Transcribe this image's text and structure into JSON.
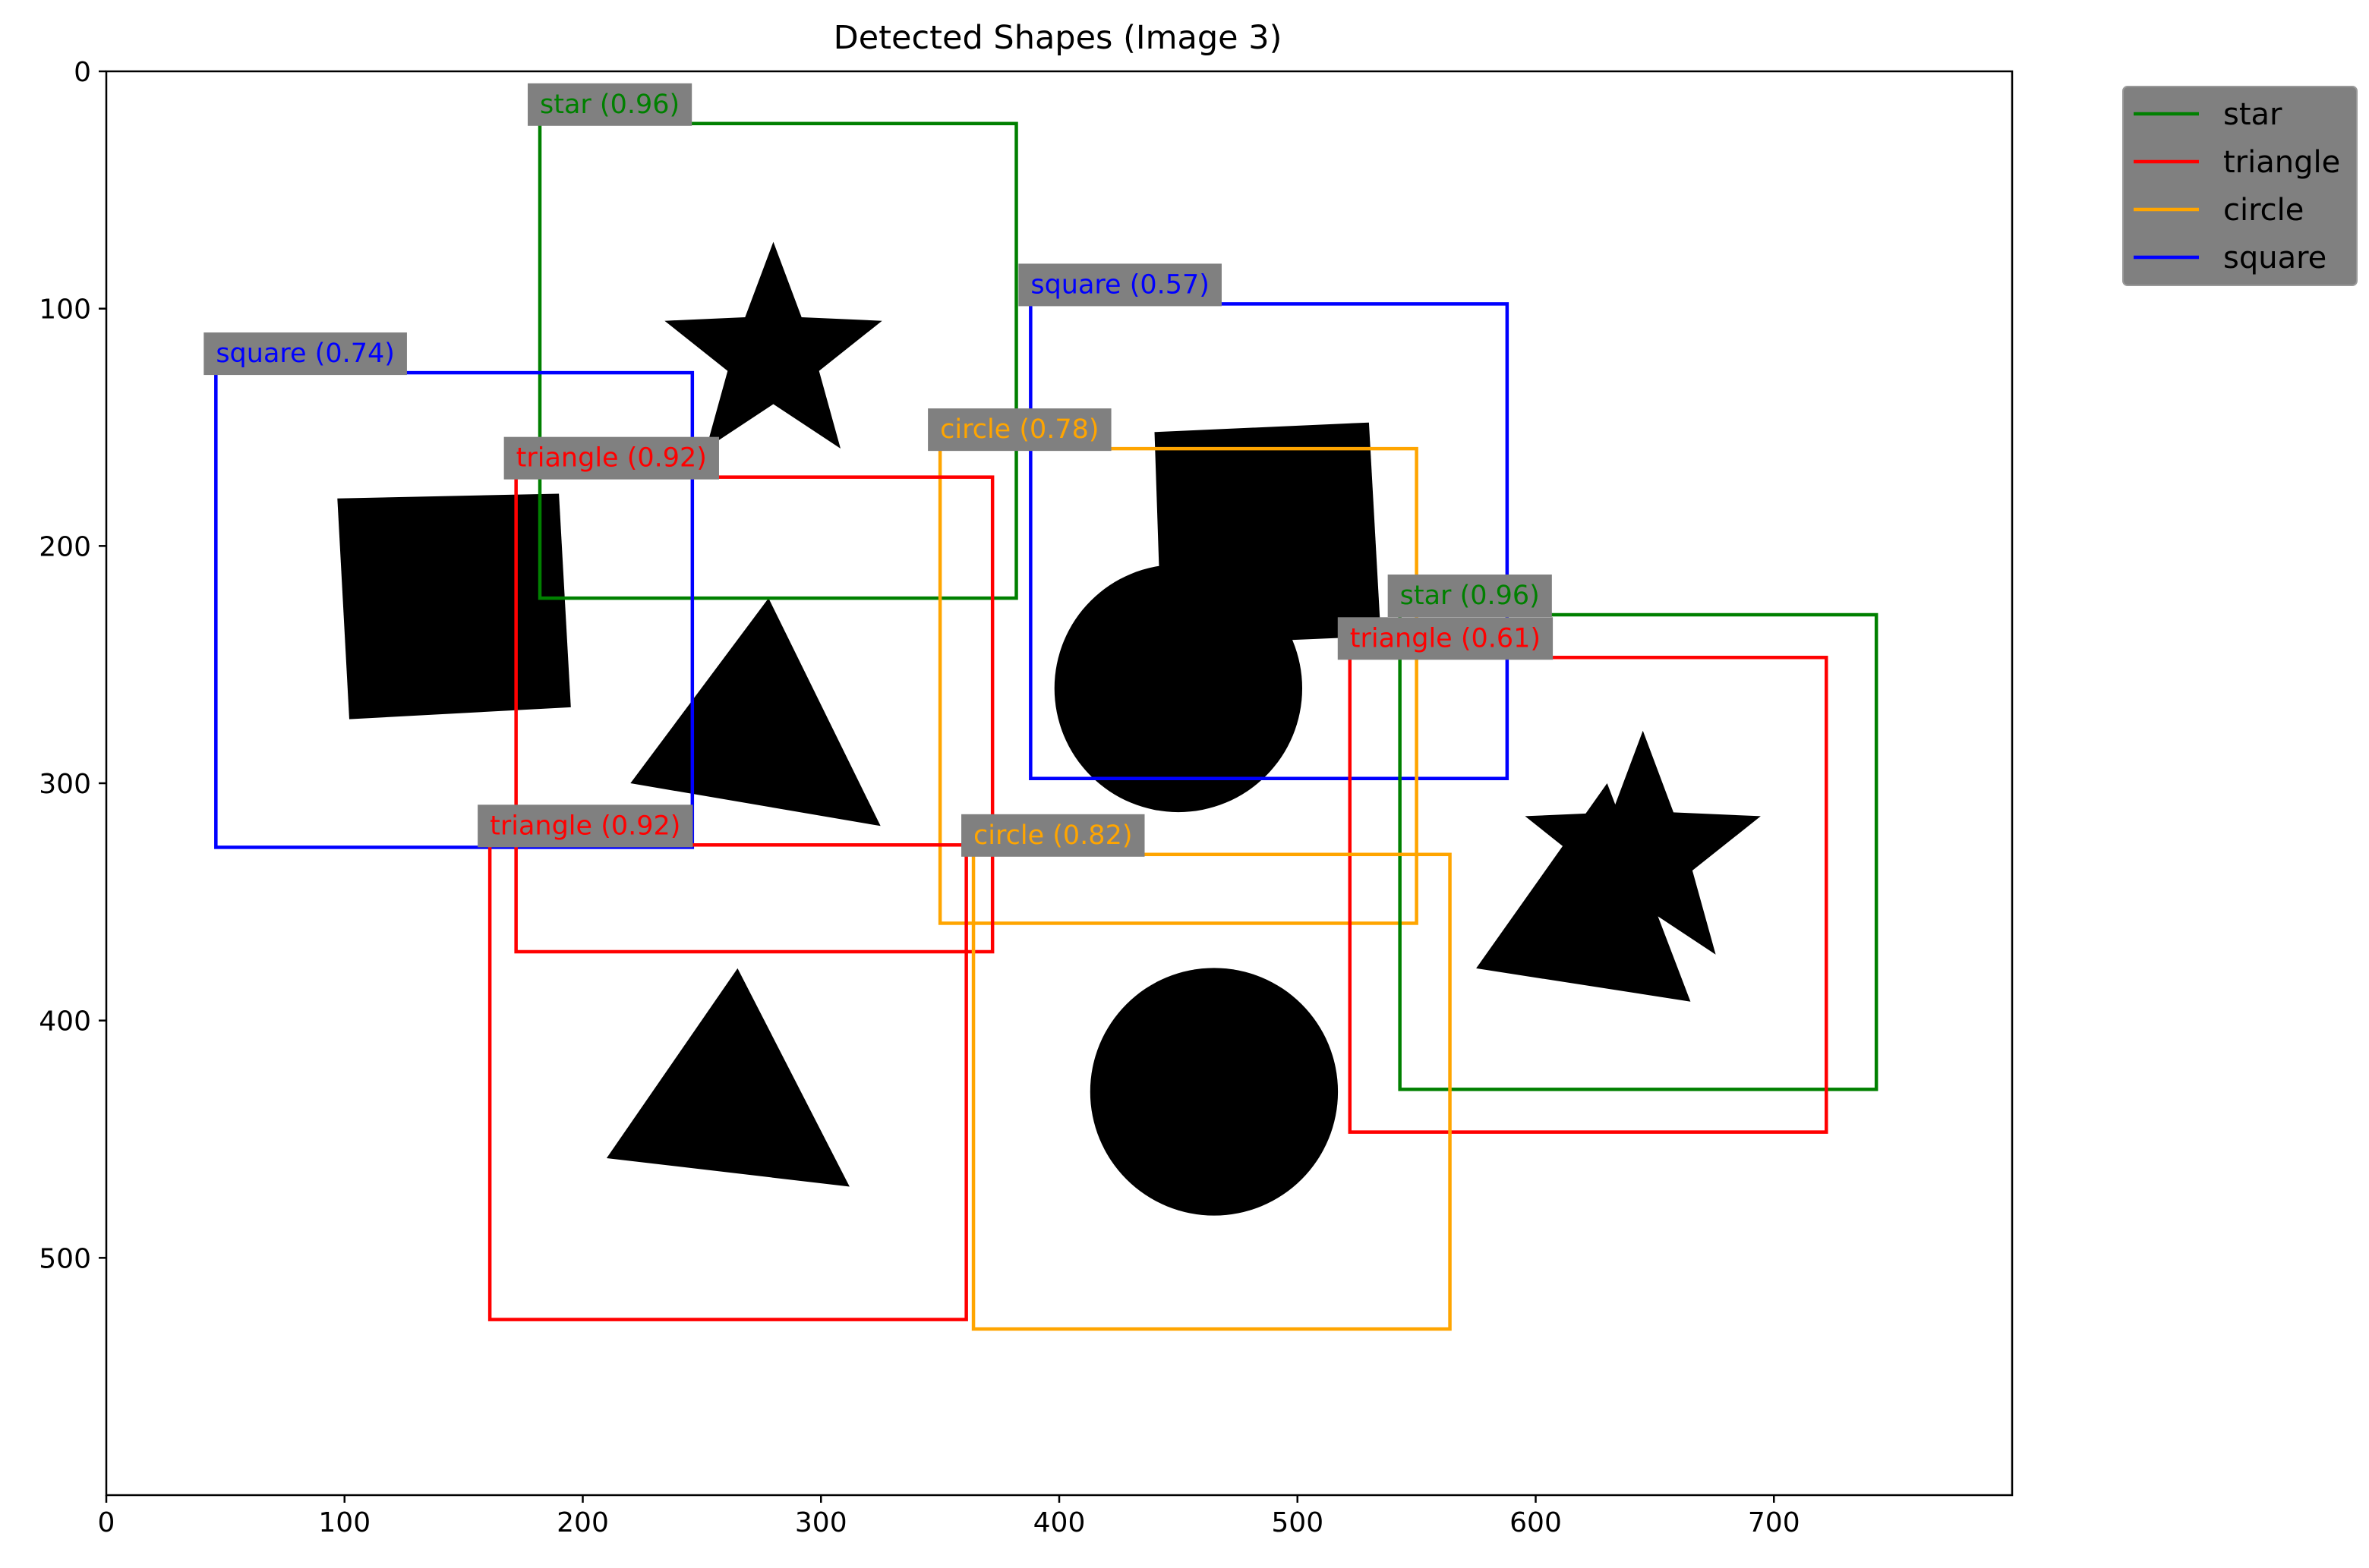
{
  "chart_data": {
    "type": "scatter",
    "title": "Detected Shapes (Image 3)",
    "xlabel": "",
    "ylabel": "",
    "xlim": [
      0,
      800
    ],
    "ylim": [
      600,
      0
    ],
    "x_ticks": [
      0,
      100,
      200,
      300,
      400,
      500,
      600,
      700
    ],
    "y_ticks": [
      0,
      100,
      200,
      300,
      400,
      500
    ],
    "grid": false,
    "legend": {
      "placement": "outside-top-right",
      "entries": [
        {
          "name": "star",
          "color": "#008000"
        },
        {
          "name": "triangle",
          "color": "#ff0000"
        },
        {
          "name": "circle",
          "color": "#ffa500"
        },
        {
          "name": "square",
          "color": "#0000ff"
        }
      ]
    },
    "label_background": "#808080",
    "image_shapes": [
      {
        "kind": "star",
        "cx": 280,
        "cy": 120,
        "r": 48
      },
      {
        "kind": "square",
        "points": [
          [
            97,
            180
          ],
          [
            190,
            178
          ],
          [
            195,
            268
          ],
          [
            102,
            273
          ]
        ]
      },
      {
        "kind": "triangle",
        "points": [
          [
            278,
            222
          ],
          [
            220,
            300
          ],
          [
            325,
            318
          ]
        ]
      },
      {
        "kind": "square",
        "points": [
          [
            440,
            152
          ],
          [
            530,
            148
          ],
          [
            535,
            238
          ],
          [
            443,
            242
          ]
        ]
      },
      {
        "kind": "circle",
        "cx": 450,
        "cy": 260,
        "r": 52
      },
      {
        "kind": "triangle",
        "points": [
          [
            630,
            300
          ],
          [
            575,
            378
          ],
          [
            665,
            392
          ]
        ]
      },
      {
        "kind": "star",
        "cx": 645,
        "cy": 330,
        "r": 52
      },
      {
        "kind": "triangle",
        "points": [
          [
            265,
            378
          ],
          [
            210,
            458
          ],
          [
            312,
            470
          ]
        ]
      },
      {
        "kind": "circle",
        "cx": 465,
        "cy": 430,
        "r": 52
      }
    ],
    "detections": [
      {
        "label": "star (0.96)",
        "class": "star",
        "confidence": 0.96,
        "x0": 182,
        "y0": 22,
        "x1": 382,
        "y1": 222
      },
      {
        "label": "square (0.57)",
        "class": "square",
        "confidence": 0.57,
        "x0": 388,
        "y0": 98,
        "x1": 588,
        "y1": 298
      },
      {
        "label": "square (0.74)",
        "class": "square",
        "confidence": 0.74,
        "x0": 46,
        "y0": 127,
        "x1": 246,
        "y1": 327
      },
      {
        "label": "circle (0.78)",
        "class": "circle",
        "confidence": 0.78,
        "x0": 350,
        "y0": 159,
        "x1": 550,
        "y1": 359
      },
      {
        "label": "triangle (0.92)",
        "class": "triangle",
        "confidence": 0.92,
        "x0": 172,
        "y0": 171,
        "x1": 372,
        "y1": 371
      },
      {
        "label": "star (0.96)",
        "class": "star",
        "confidence": 0.96,
        "x0": 543,
        "y0": 229,
        "x1": 743,
        "y1": 429
      },
      {
        "label": "triangle (0.61)",
        "class": "triangle",
        "confidence": 0.61,
        "x0": 522,
        "y0": 247,
        "x1": 722,
        "y1": 447
      },
      {
        "label": "triangle (0.92)",
        "class": "triangle",
        "confidence": 0.92,
        "x0": 161,
        "y0": 326,
        "x1": 361,
        "y1": 526
      },
      {
        "label": "circle (0.82)",
        "class": "circle",
        "confidence": 0.82,
        "x0": 364,
        "y0": 330,
        "x1": 564,
        "y1": 530
      }
    ]
  }
}
